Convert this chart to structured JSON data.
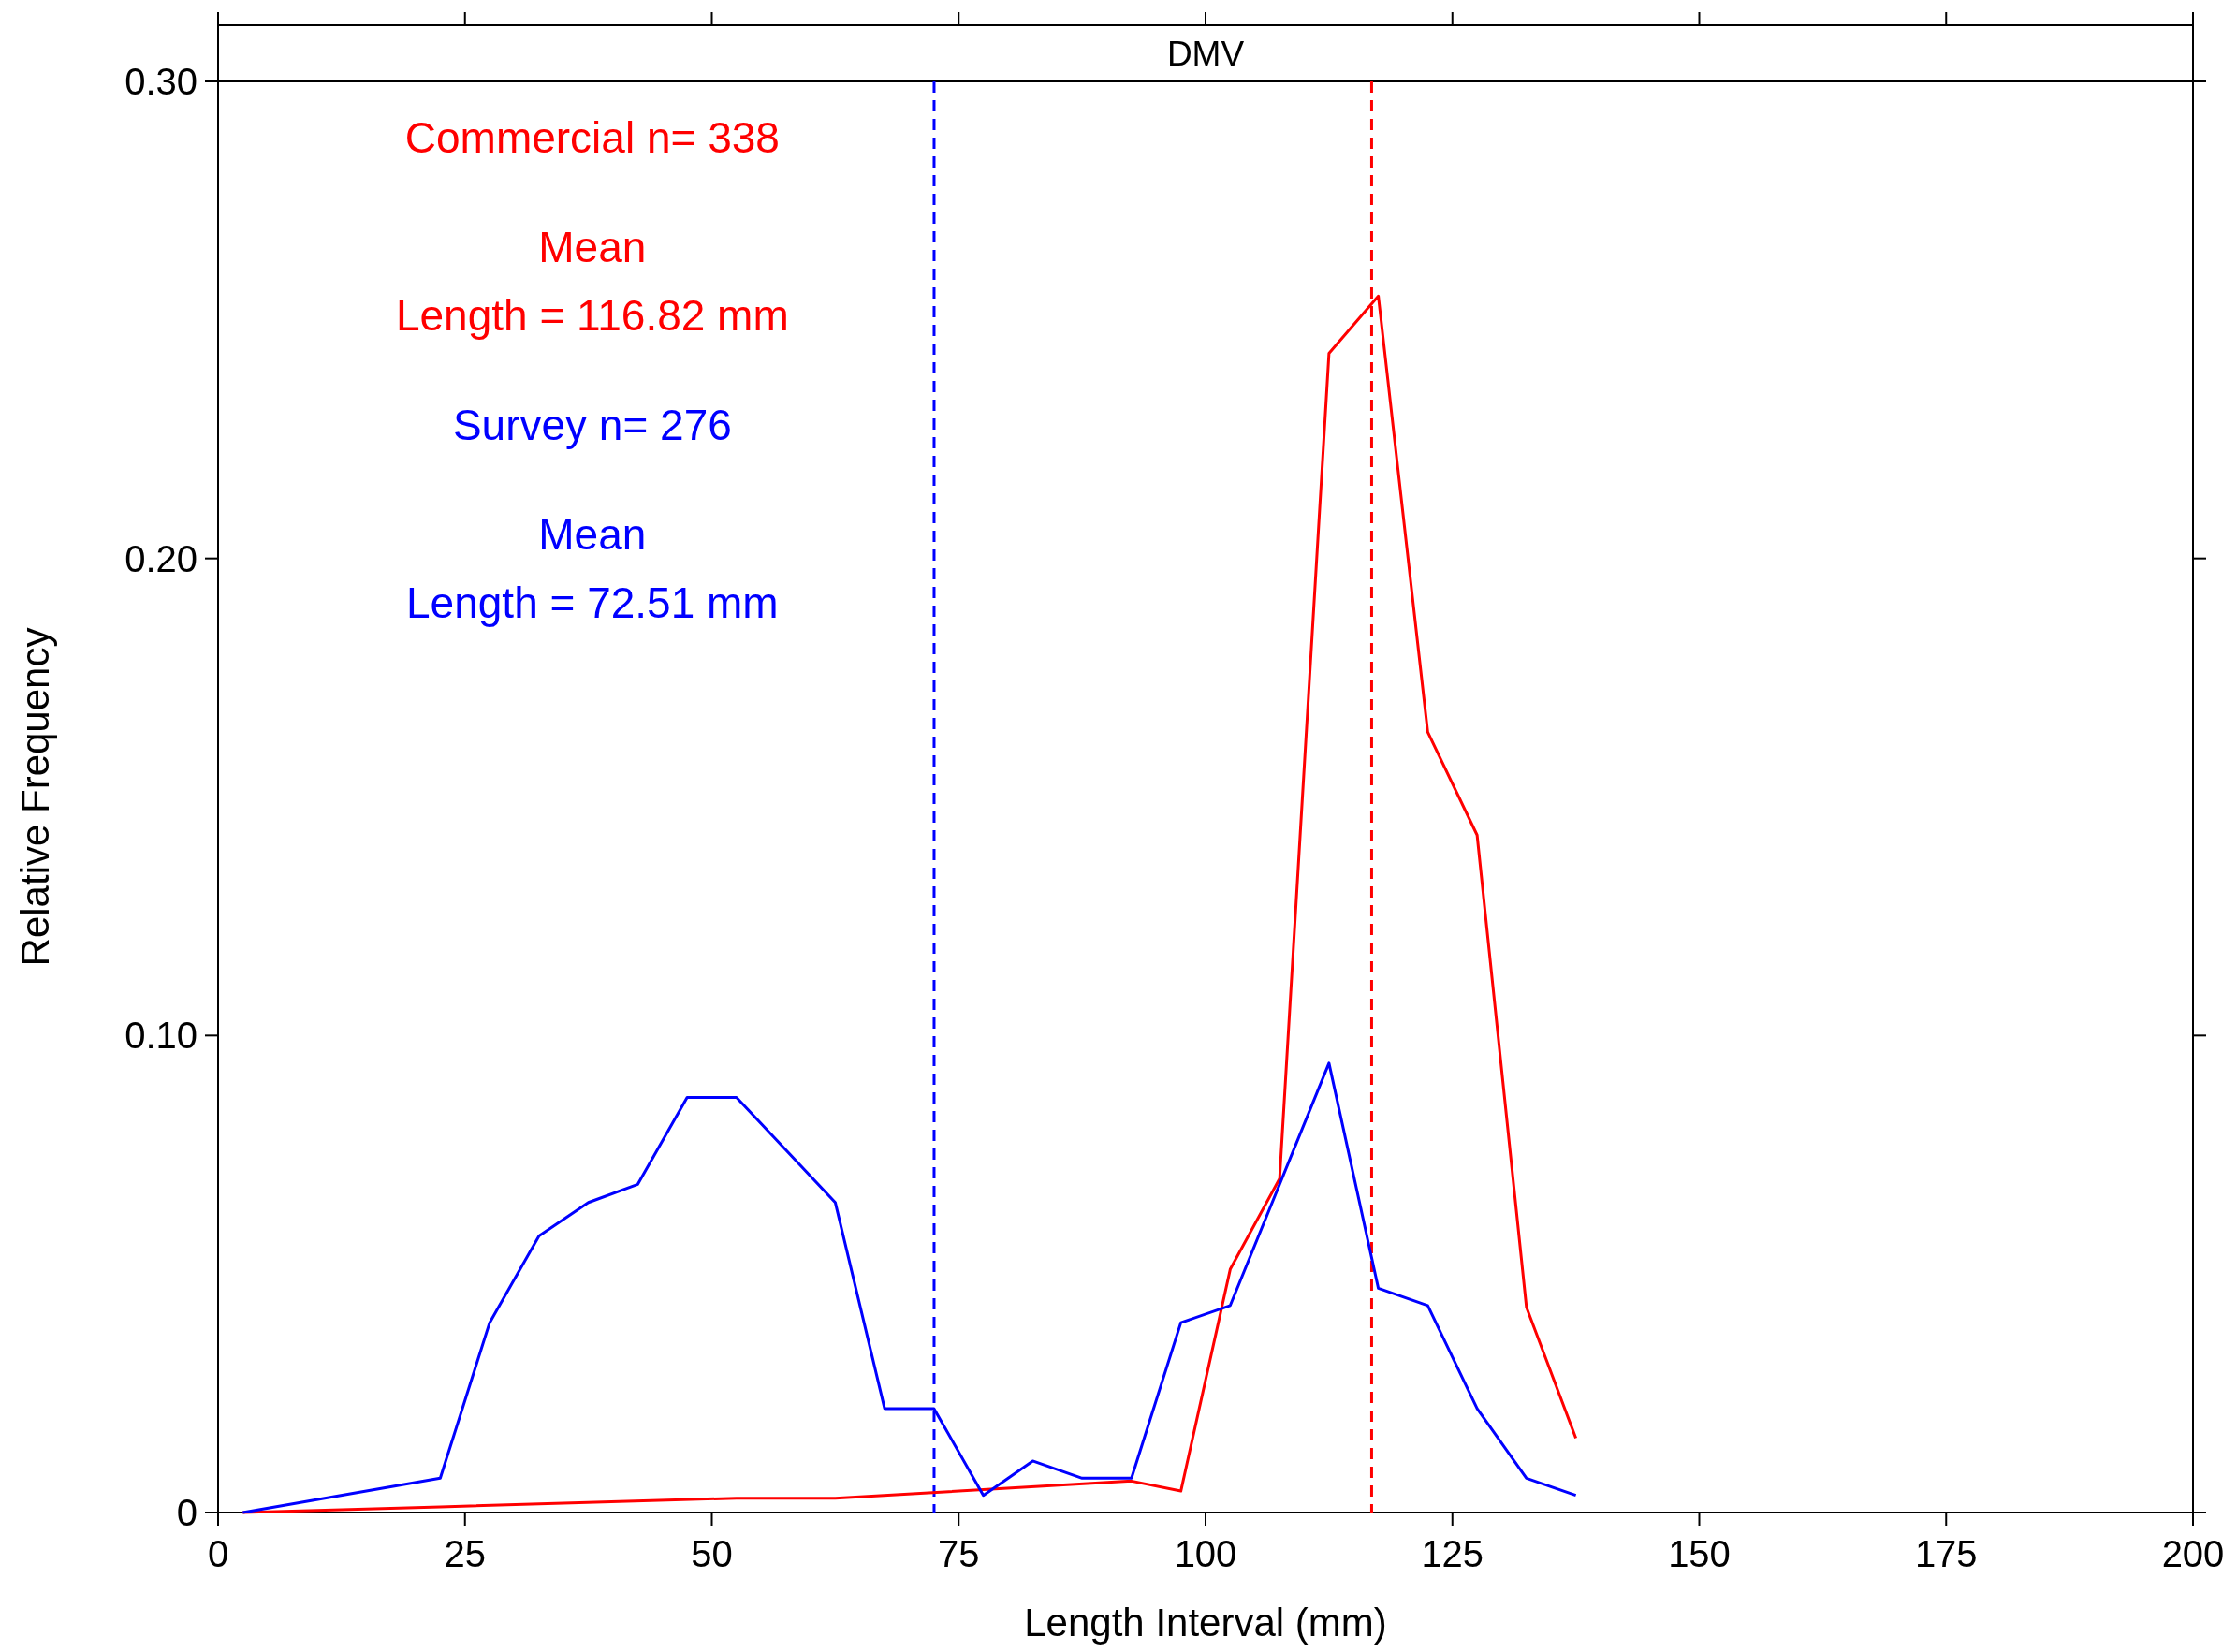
{
  "chart_data": {
    "type": "line",
    "title": "DMV",
    "xlabel": "Length Interval (mm)",
    "ylabel": "Relative Frequency",
    "xlim": [
      0,
      200
    ],
    "xticks": [
      0,
      25,
      50,
      75,
      100,
      125,
      150,
      175,
      200
    ],
    "ylim": [
      0,
      0.3
    ],
    "yticks": [
      {
        "value": 0,
        "label": "0"
      },
      {
        "value": 0.1,
        "label": "0.10"
      },
      {
        "value": 0.2,
        "label": "0.20"
      },
      {
        "value": 0.3,
        "label": "0.30"
      }
    ],
    "grid": false,
    "marker": "none",
    "line_style": "solid",
    "annotations": [
      "Commercial n= 338",
      "Mean",
      "Length = 116.82 mm",
      "Survey n= 276",
      "Mean",
      "Length = 72.51 mm"
    ],
    "ref_lines": [
      {
        "axis": "x",
        "value": 116.82,
        "color": "#ff0000",
        "line_style": "dashed"
      },
      {
        "axis": "x",
        "value": 72.51,
        "color": "#0000ff",
        "line_style": "dashed"
      }
    ],
    "series": [
      {
        "color": "#ff0000",
        "x": [
          2.5,
          22.5,
          52.5,
          62.5,
          92.5,
          97.5,
          102.5,
          107.5,
          112.5,
          117.5,
          122.5,
          127.5,
          132.5,
          137.5
        ],
        "values": [
          0,
          0.0012,
          0.003,
          0.003,
          0.0066,
          0.0045,
          0.051,
          0.07,
          0.243,
          0.255,
          0.1636,
          0.142,
          0.043,
          0.0156
        ]
      },
      {
        "color": "#0000ff",
        "x": [
          2.5,
          22.5,
          27.5,
          32.5,
          37.5,
          42.5,
          47.5,
          52.5,
          62.5,
          67.5,
          72.5,
          77.5,
          82.5,
          87.5,
          92.5,
          97.5,
          102.5,
          112.5,
          117.5,
          122.5,
          127.5,
          132.5,
          137.5
        ],
        "values": [
          0,
          0.0072,
          0.0398,
          0.058,
          0.065,
          0.0688,
          0.087,
          0.087,
          0.065,
          0.0218,
          0.0218,
          0.0036,
          0.0108,
          0.0072,
          0.0072,
          0.0398,
          0.0434,
          0.0942,
          0.047,
          0.0434,
          0.0218,
          0.0072,
          0.0036
        ]
      }
    ]
  }
}
